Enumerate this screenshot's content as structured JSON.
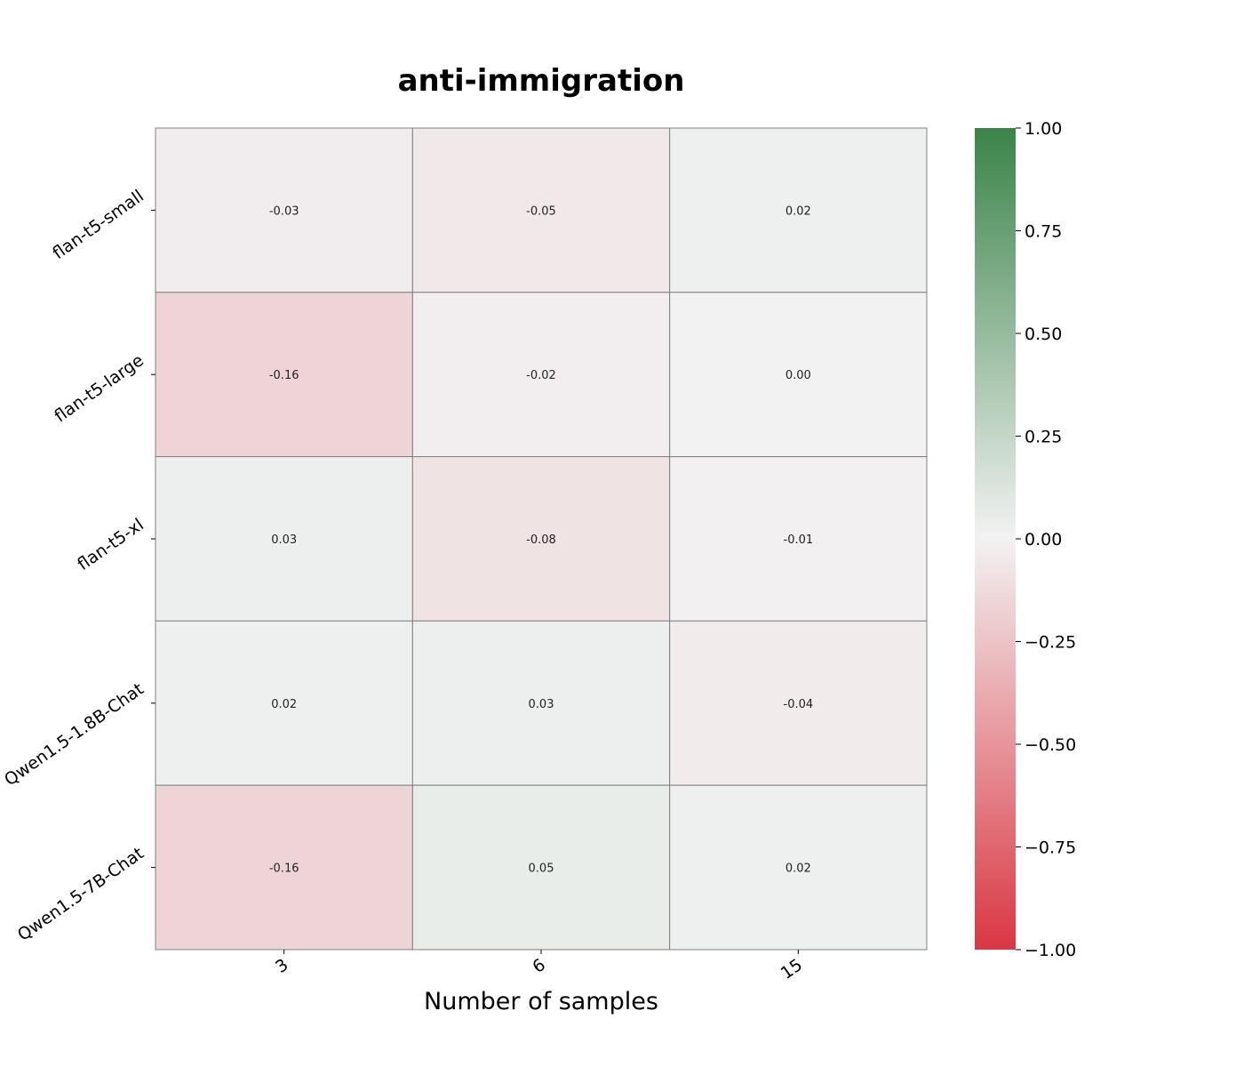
{
  "chart_data": {
    "type": "heatmap",
    "title": "anti-immigration",
    "xlabel": "Number of samples",
    "ylabel": "",
    "x_categories": [
      "3",
      "6",
      "15"
    ],
    "y_categories": [
      "flan-t5-small",
      "flan-t5-large",
      "flan-t5-xl",
      "Qwen1.5-1.8B-Chat",
      "Qwen1.5-7B-Chat"
    ],
    "values": [
      [
        -0.03,
        -0.05,
        0.02
      ],
      [
        -0.16,
        -0.02,
        0.0
      ],
      [
        0.03,
        -0.08,
        -0.01
      ],
      [
        0.02,
        0.03,
        -0.04
      ],
      [
        -0.16,
        0.05,
        0.02
      ]
    ],
    "value_labels": [
      [
        "-0.03",
        "-0.05",
        "0.02"
      ],
      [
        "-0.16",
        "-0.02",
        "0.00"
      ],
      [
        "0.03",
        "-0.08",
        "-0.01"
      ],
      [
        "0.02",
        "0.03",
        "-0.04"
      ],
      [
        "-0.16",
        "0.05",
        "0.02"
      ]
    ],
    "colorbar": {
      "range": [
        -1.0,
        1.0
      ],
      "ticks": [
        1.0,
        0.75,
        0.5,
        0.25,
        0.0,
        -0.25,
        -0.5,
        -0.75,
        -1.0
      ],
      "tick_labels": [
        "1.00",
        "0.75",
        "0.50",
        "0.25",
        "0.00",
        "−0.25",
        "−0.50",
        "−0.75",
        "−1.00"
      ],
      "colors": {
        "low": "#da3743",
        "mid": "#f2f2f2",
        "high": "#3a8449"
      }
    },
    "grid": true
  }
}
